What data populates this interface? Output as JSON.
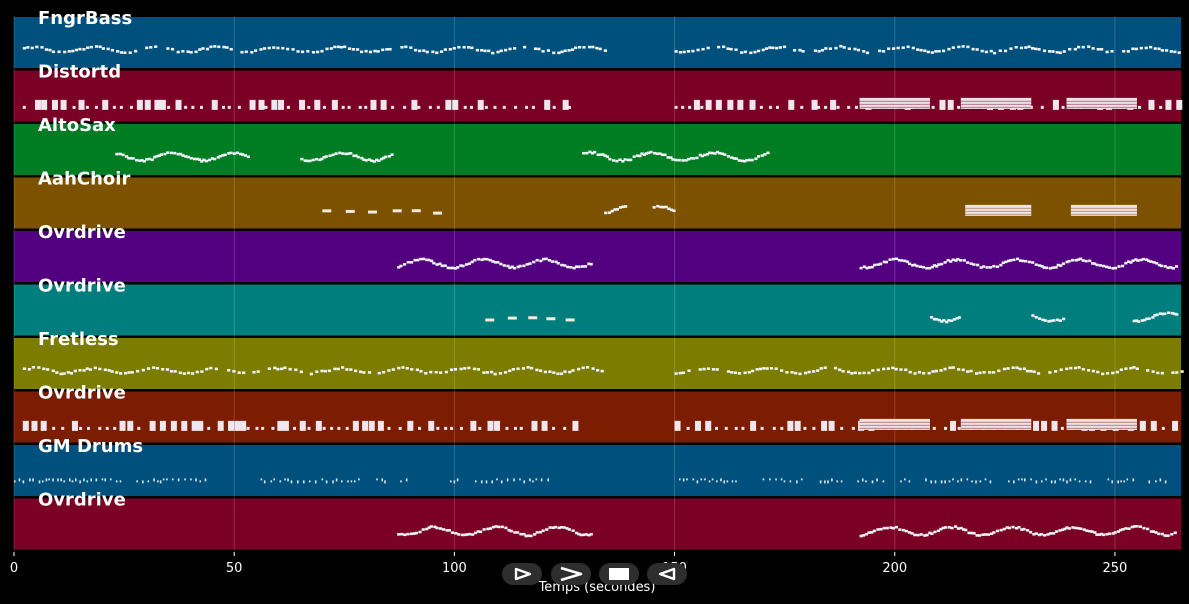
{
  "chart_data": {
    "type": "piano-roll",
    "xlabel": "Temps (secondes)",
    "xlim": [
      0,
      265
    ],
    "x_ticks": [
      0,
      50,
      100,
      150,
      200,
      250
    ],
    "grid": true,
    "tracks": [
      {
        "name": "FngrBass",
        "color": "#00507e",
        "segments": [
          [
            2,
            134,
            "bass"
          ],
          [
            150,
            265,
            "bass"
          ]
        ],
        "dense_from": 192
      },
      {
        "name": "Distortd",
        "color": "#7b0026",
        "segments": [
          [
            2,
            128,
            "chord"
          ],
          [
            150,
            264,
            "chord"
          ]
        ],
        "blocks": [
          [
            192,
            208
          ],
          [
            215,
            231
          ],
          [
            239,
            255
          ]
        ]
      },
      {
        "name": "AltoSax",
        "color": "#007c22",
        "segments": [
          [
            23,
            53,
            "melody"
          ],
          [
            65,
            86,
            "melody"
          ],
          [
            129,
            171,
            "melody"
          ]
        ]
      },
      {
        "name": "AahChoir",
        "color": "#7c5200",
        "segments": [
          [
            70,
            99,
            "dash"
          ],
          [
            134,
            139,
            "melody"
          ],
          [
            145,
            150,
            "melody"
          ]
        ],
        "blocks": [
          [
            216,
            231
          ],
          [
            240,
            255
          ]
        ]
      },
      {
        "name": "Ovrdrive",
        "color": "#520080",
        "segments": [
          [
            87,
            131,
            "melody"
          ],
          [
            192,
            264,
            "melody"
          ]
        ]
      },
      {
        "name": "Ovrdrive",
        "color": "#007e7e",
        "segments": [
          [
            107,
            127,
            "dash"
          ],
          [
            208,
            215,
            "melody"
          ],
          [
            231,
            238,
            "melody"
          ],
          [
            254,
            264,
            "melody"
          ]
        ]
      },
      {
        "name": "Fretless",
        "color": "#7c7c00",
        "segments": [
          [
            2,
            134,
            "bass"
          ],
          [
            150,
            265,
            "bass"
          ]
        ],
        "dense_from": 192
      },
      {
        "name": "Ovrdrive",
        "color": "#7c1c00",
        "segments": [
          [
            2,
            128,
            "chord"
          ],
          [
            150,
            264,
            "chord"
          ]
        ],
        "blocks": [
          [
            192,
            208
          ],
          [
            215,
            231
          ],
          [
            239,
            255
          ]
        ]
      },
      {
        "name": "GM Drums",
        "color": "#00507e",
        "segments": [
          [
            0,
            45,
            "drum"
          ],
          [
            56,
            90,
            "drum"
          ],
          [
            99,
            122,
            "drum"
          ],
          [
            151,
            165,
            "drum"
          ],
          [
            170,
            262,
            "drum"
          ]
        ]
      },
      {
        "name": "Ovrdrive",
        "color": "#7b0026",
        "segments": [
          [
            87,
            131,
            "melody"
          ],
          [
            192,
            264,
            "melody"
          ]
        ]
      }
    ]
  },
  "controls": {
    "play_icon": "play-triangle-icon",
    "forward_icon": "chevron-right-icon",
    "stop_icon": "stop-square-icon",
    "back_icon": "triangle-left-icon"
  }
}
